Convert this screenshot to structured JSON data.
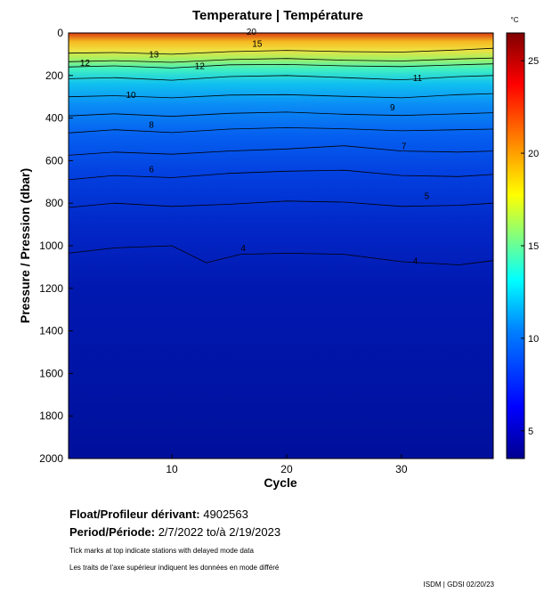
{
  "chart_data": {
    "type": "heatmap",
    "title": "Temperature | Température",
    "xlabel": "Cycle",
    "ylabel": "Pressure / Pression (dbar)",
    "xlim": [
      1,
      38
    ],
    "ylim": [
      2000,
      0
    ],
    "x_ticks": [
      10,
      20,
      30
    ],
    "y_ticks": [
      0,
      200,
      400,
      600,
      800,
      1000,
      1200,
      1400,
      1600,
      1800,
      2000
    ],
    "colorbar": {
      "unit": "°C",
      "range": [
        3.5,
        26.5
      ],
      "ticks": [
        5,
        10,
        15,
        20,
        25
      ],
      "colors": [
        "#00008f",
        "#0000ff",
        "#0080ff",
        "#00ffff",
        "#80ff80",
        "#ffff00",
        "#ff8000",
        "#ff0000",
        "#800000"
      ]
    },
    "isotherm_labels": [
      {
        "label": "20",
        "cycle": 16.5,
        "pressure": 8
      },
      {
        "label": "15",
        "cycle": 17,
        "pressure": 65
      },
      {
        "label": "13",
        "cycle": 8,
        "pressure": 115
      },
      {
        "label": "12",
        "cycle": 2,
        "pressure": 155
      },
      {
        "label": "12",
        "cycle": 12,
        "pressure": 170
      },
      {
        "label": "11",
        "cycle": 31,
        "pressure": 225
      },
      {
        "label": "10",
        "cycle": 6,
        "pressure": 305
      },
      {
        "label": "9",
        "cycle": 29,
        "pressure": 365
      },
      {
        "label": "8",
        "cycle": 8,
        "pressure": 445
      },
      {
        "label": "7",
        "cycle": 30,
        "pressure": 545
      },
      {
        "label": "6",
        "cycle": 8,
        "pressure": 655
      },
      {
        "label": "5",
        "cycle": 32,
        "pressure": 780
      },
      {
        "label": "4",
        "cycle": 16,
        "pressure": 1025
      },
      {
        "label": "4",
        "cycle": 31,
        "pressure": 1085
      }
    ],
    "contours": [
      {
        "value": 15,
        "points": [
          [
            1,
            95
          ],
          [
            5,
            92
          ],
          [
            10,
            100
          ],
          [
            15,
            88
          ],
          [
            20,
            82
          ],
          [
            25,
            88
          ],
          [
            30,
            90
          ],
          [
            35,
            80
          ],
          [
            38,
            72
          ]
        ]
      },
      {
        "value": 13,
        "points": [
          [
            1,
            135
          ],
          [
            5,
            130
          ],
          [
            10,
            138
          ],
          [
            15,
            125
          ],
          [
            20,
            120
          ],
          [
            25,
            128
          ],
          [
            30,
            132
          ],
          [
            35,
            122
          ],
          [
            38,
            118
          ]
        ]
      },
      {
        "value": 12,
        "points": [
          [
            1,
            160
          ],
          [
            5,
            155
          ],
          [
            10,
            165
          ],
          [
            15,
            150
          ],
          [
            20,
            148
          ],
          [
            25,
            155
          ],
          [
            30,
            158
          ],
          [
            35,
            150
          ],
          [
            38,
            145
          ]
        ]
      },
      {
        "value": 11,
        "points": [
          [
            1,
            215
          ],
          [
            5,
            210
          ],
          [
            10,
            222
          ],
          [
            15,
            205
          ],
          [
            20,
            200
          ],
          [
            25,
            210
          ],
          [
            30,
            220
          ],
          [
            35,
            205
          ],
          [
            38,
            200
          ]
        ]
      },
      {
        "value": 10,
        "points": [
          [
            1,
            300
          ],
          [
            5,
            295
          ],
          [
            10,
            305
          ],
          [
            15,
            292
          ],
          [
            20,
            290
          ],
          [
            25,
            298
          ],
          [
            30,
            305
          ],
          [
            35,
            290
          ],
          [
            38,
            285
          ]
        ]
      },
      {
        "value": 9,
        "points": [
          [
            1,
            390
          ],
          [
            5,
            380
          ],
          [
            10,
            392
          ],
          [
            15,
            378
          ],
          [
            20,
            372
          ],
          [
            25,
            382
          ],
          [
            30,
            388
          ],
          [
            35,
            380
          ],
          [
            38,
            375
          ]
        ]
      },
      {
        "value": 8,
        "points": [
          [
            1,
            470
          ],
          [
            5,
            455
          ],
          [
            10,
            468
          ],
          [
            15,
            452
          ],
          [
            20,
            445
          ],
          [
            25,
            450
          ],
          [
            30,
            460
          ],
          [
            35,
            455
          ],
          [
            38,
            452
          ]
        ]
      },
      {
        "value": 7,
        "points": [
          [
            1,
            575
          ],
          [
            5,
            560
          ],
          [
            10,
            570
          ],
          [
            15,
            555
          ],
          [
            20,
            545
          ],
          [
            25,
            530
          ],
          [
            30,
            555
          ],
          [
            35,
            560
          ],
          [
            38,
            555
          ]
        ]
      },
      {
        "value": 6,
        "points": [
          [
            1,
            690
          ],
          [
            5,
            670
          ],
          [
            10,
            680
          ],
          [
            15,
            660
          ],
          [
            20,
            650
          ],
          [
            25,
            645
          ],
          [
            30,
            670
          ],
          [
            35,
            675
          ],
          [
            38,
            665
          ]
        ]
      },
      {
        "value": 5,
        "points": [
          [
            1,
            820
          ],
          [
            5,
            800
          ],
          [
            10,
            815
          ],
          [
            15,
            805
          ],
          [
            20,
            790
          ],
          [
            25,
            795
          ],
          [
            30,
            815
          ],
          [
            35,
            810
          ],
          [
            38,
            800
          ]
        ]
      },
      {
        "value": 4,
        "points": [
          [
            1,
            1035
          ],
          [
            5,
            1010
          ],
          [
            10,
            1000
          ],
          [
            13,
            1080
          ],
          [
            16,
            1040
          ],
          [
            20,
            1035
          ],
          [
            25,
            1040
          ],
          [
            30,
            1075
          ],
          [
            35,
            1090
          ],
          [
            38,
            1070
          ]
        ]
      }
    ]
  },
  "info": {
    "float_label": "Float/Profileur dérivant:",
    "float_value": "4902563",
    "period_label": "Period/Période:",
    "period_start": "2/7/2022",
    "period_sep": "to/à",
    "period_end": "2/19/2023",
    "note_en": "Tick marks at top indicate stations with delayed mode data",
    "note_fr": "Les traits de l'axe supérieur indiquent les données en mode différé"
  },
  "credit": "ISDM | GDSI  02/20/23"
}
